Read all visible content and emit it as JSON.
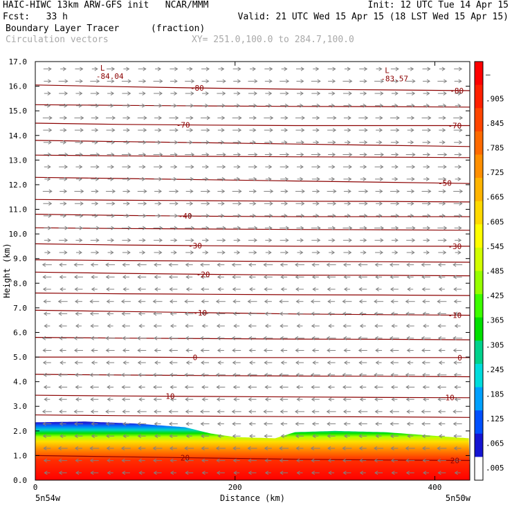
{
  "header": {
    "model_line": "HAIC-HIWC 13km ARW-GFS init   NCAR/MMM",
    "init_line": "Init: 12 UTC Tue 14 Apr 15",
    "fcst_line": "Fcst:   33 h",
    "valid_line": "Valid: 21 UTC Wed 15 Apr 15 (18 LST Wed 15 Apr 15)",
    "field_name": "Boundary Layer Tracer",
    "field_units": "(fraction)",
    "vector_label": "Circulation vectors",
    "xy_range": "XY= 251.0,100.0 to 284.7,100.0"
  },
  "chart_data": {
    "type": "heatmap",
    "xlabel": "Distance (km)",
    "ylabel": "Height (km)",
    "xlim": [
      0,
      435
    ],
    "ylim": [
      0,
      17
    ],
    "x_ticks": [
      "0",
      "200",
      "400"
    ],
    "y_ticks": [
      "0.0",
      "1.0",
      "2.0",
      "3.0",
      "4.0",
      "5.0",
      "6.0",
      "7.0",
      "8.0",
      "9.0",
      "10.0",
      "11.0",
      "12.0",
      "13.0",
      "14.0",
      "15.0",
      "16.0",
      "17.0"
    ],
    "x_endpoint_labels": [
      "5n54w",
      "5n50w"
    ],
    "grid": false,
    "colorbar": {
      "labels": [
        "–",
        ".905",
        ".845",
        ".785",
        ".725",
        ".665",
        ".605",
        ".545",
        ".485",
        ".425",
        ".365",
        ".305",
        ".245",
        ".185",
        ".125",
        ".065",
        ".005"
      ],
      "colors": [
        "#ff0000",
        "#ff2000",
        "#ff4500",
        "#ff6a00",
        "#ff8f00",
        "#ffb400",
        "#ffd900",
        "#ffff00",
        "#d2ff00",
        "#96ff00",
        "#3cff00",
        "#00e000",
        "#00d28c",
        "#00dcdc",
        "#00a0ff",
        "#0050ff",
        "#1414d2",
        "#ffffff"
      ]
    },
    "tracer_top_km": [
      [
        0,
        2.35
      ],
      [
        50,
        2.38
      ],
      [
        100,
        2.3
      ],
      [
        150,
        2.15
      ],
      [
        175,
        1.9
      ],
      [
        200,
        1.75
      ],
      [
        225,
        1.72
      ],
      [
        240,
        1.7
      ],
      [
        260,
        1.95
      ],
      [
        300,
        2.0
      ],
      [
        350,
        1.95
      ],
      [
        400,
        1.8
      ],
      [
        435,
        1.7
      ]
    ],
    "blue_band_km": 0.55,
    "isotherms_degC": [
      {
        "label": "20",
        "h": [
          1.0,
          0.95,
          0.9,
          0.85,
          0.82,
          0.8
        ],
        "labels_at": [
          {
            "x": 150,
            "text": "20"
          },
          {
            "x": 420,
            "text": "20"
          }
        ]
      },
      {
        "label": "10",
        "h": [
          3.45,
          3.42,
          3.4,
          3.38,
          3.36,
          3.35
        ],
        "labels_at": [
          {
            "x": 135,
            "text": "10"
          },
          {
            "x": 415,
            "text": "10"
          }
        ]
      },
      {
        "label": "0",
        "h": [
          5.0,
          5.0,
          4.98,
          4.98,
          4.98,
          4.98
        ],
        "labels_at": [
          {
            "x": 160,
            "text": "0"
          },
          {
            "x": 425,
            "text": "0"
          }
        ]
      },
      {
        "label": "-10",
        "h": [
          6.9,
          6.85,
          6.8,
          6.75,
          6.72,
          6.7
        ],
        "labels_at": [
          {
            "x": 165,
            "text": "-10"
          },
          {
            "x": 420,
            "text": "-10"
          }
        ]
      },
      {
        "label": "-20",
        "h": [
          8.45,
          8.4,
          8.36,
          8.33,
          8.32,
          8.3
        ],
        "labels_at": [
          {
            "x": 168,
            "text": "-20"
          }
        ]
      },
      {
        "label": "-30",
        "h": [
          9.6,
          9.55,
          9.52,
          9.5,
          9.5,
          9.5
        ],
        "labels_at": [
          {
            "x": 160,
            "text": "-30"
          },
          {
            "x": 420,
            "text": "-30"
          }
        ]
      },
      {
        "label": "-40",
        "h": [
          10.8,
          10.75,
          10.72,
          10.7,
          10.7,
          10.7
        ],
        "labels_at": [
          {
            "x": 150,
            "text": "-40"
          }
        ]
      },
      {
        "label": "-50",
        "h": [
          12.3,
          12.25,
          12.2,
          12.15,
          12.1,
          12.05
        ],
        "labels_at": [
          {
            "x": 410,
            "text": "-50"
          }
        ]
      },
      {
        "label": "-60",
        "h": [
          13.8,
          13.75,
          13.7,
          13.65,
          13.6,
          13.55
        ],
        "labels_at": []
      },
      {
        "label": "-70",
        "h": [
          14.5,
          14.45,
          14.42,
          14.4,
          14.4,
          14.4
        ],
        "labels_at": [
          {
            "x": 148,
            "text": "-70"
          },
          {
            "x": 420,
            "text": "-70"
          }
        ]
      },
      {
        "label": "-80",
        "h": [
          16.05,
          15.98,
          15.92,
          15.88,
          15.85,
          15.82
        ],
        "labels_at": [
          {
            "x": 162,
            "text": "-80"
          },
          {
            "x": 422,
            "text": "-80"
          }
        ]
      }
    ],
    "extra_isotherm_heights_km": [
      2.65,
      4.3,
      5.8,
      7.6,
      8.95,
      10.25,
      11.4,
      13.2,
      15.25
    ],
    "minima": [
      {
        "x": 65,
        "y": 16.75,
        "marker": "L",
        "text": "-84.04"
      },
      {
        "x": 350,
        "y": 16.65,
        "marker": "L",
        "text": "-83.57"
      }
    ],
    "vectors": {
      "columns": 27,
      "rows": 34,
      "reversal_height_km": 9.2,
      "upper_dir": "east",
      "lower_dir": "west"
    }
  }
}
